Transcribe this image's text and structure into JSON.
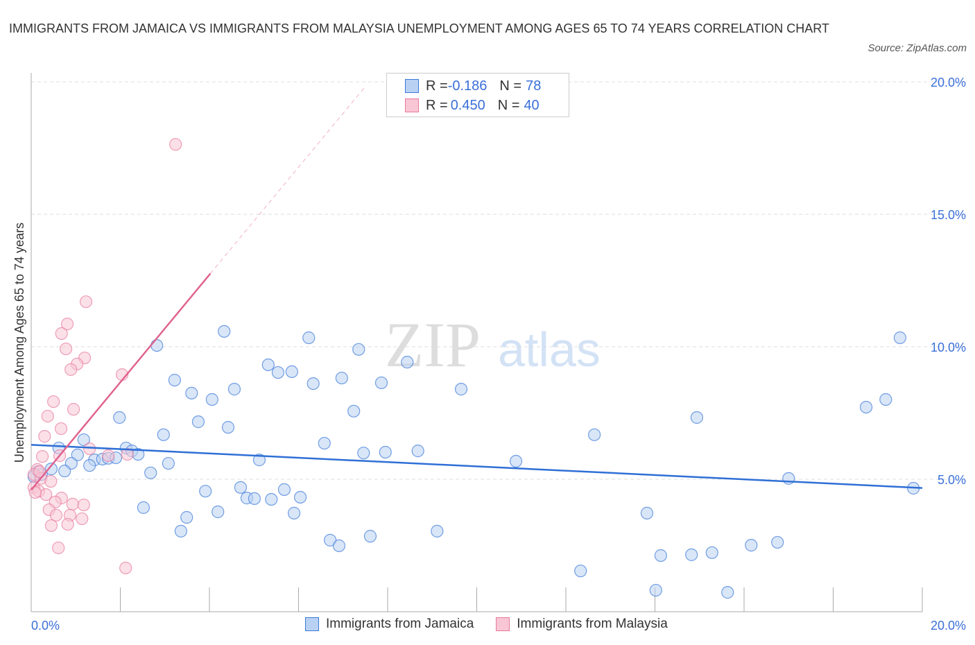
{
  "title": "IMMIGRANTS FROM JAMAICA VS IMMIGRANTS FROM MALAYSIA UNEMPLOYMENT AMONG AGES 65 TO 74 YEARS CORRELATION CHART",
  "source": "Source: ZipAtlas.com",
  "watermark": "ZIPatlas",
  "legend": [
    {
      "r_label": "R = ",
      "r": "-0.186",
      "n_label": "N = ",
      "n": "78"
    },
    {
      "r_label": "R = ",
      "r": "0.450",
      "n_label": "N = ",
      "n": "40"
    }
  ],
  "chart_data": {
    "type": "scatter",
    "title": "IMMIGRANTS FROM JAMAICA VS IMMIGRANTS FROM MALAYSIA UNEMPLOYMENT AMONG AGES 65 TO 74 YEARS CORRELATION CHART",
    "ylabel": "Unemployment Among Ages 65 to 74 years",
    "xlabel": "",
    "xlim": [
      0,
      20
    ],
    "ylim": [
      0,
      20
    ],
    "x_tick_labels": [
      "0.0%",
      "20.0%"
    ],
    "y_tick_labels": [
      "5.0%",
      "10.0%",
      "15.0%",
      "20.0%"
    ],
    "y_ticks": [
      5,
      10,
      15,
      20
    ],
    "grid": true,
    "legend_placement": "bottom",
    "series": [
      {
        "name": "Immigrants from Jamaica",
        "color": "#3a78d8",
        "fill": "#b9d2f3",
        "trend": {
          "intercept": 6.3,
          "slope": -0.0815,
          "x_range": [
            0,
            20
          ]
        },
        "points": [
          [
            2.82,
            10.05
          ],
          [
            4.33,
            10.58
          ],
          [
            6.23,
            10.34
          ],
          [
            7.35,
            9.9
          ],
          [
            19.5,
            10.34
          ],
          [
            5.32,
            9.32
          ],
          [
            5.54,
            9.03
          ],
          [
            5.85,
            9.06
          ],
          [
            8.44,
            9.42
          ],
          [
            3.22,
            8.74
          ],
          [
            6.33,
            8.61
          ],
          [
            6.97,
            8.82
          ],
          [
            7.86,
            8.64
          ],
          [
            9.65,
            8.4
          ],
          [
            3.6,
            8.25
          ],
          [
            4.06,
            8.01
          ],
          [
            4.56,
            8.4
          ],
          [
            1.98,
            7.33
          ],
          [
            3.75,
            7.17
          ],
          [
            4.42,
            6.96
          ],
          [
            7.24,
            7.57
          ],
          [
            18.74,
            7.72
          ],
          [
            19.18,
            8.01
          ],
          [
            14.94,
            7.33
          ],
          [
            2.97,
            6.68
          ],
          [
            12.64,
            6.68
          ],
          [
            1.18,
            6.49
          ],
          [
            0.62,
            6.18
          ],
          [
            2.13,
            6.18
          ],
          [
            2.26,
            6.07
          ],
          [
            2.4,
            5.94
          ],
          [
            6.58,
            6.36
          ],
          [
            7.46,
            5.99
          ],
          [
            7.95,
            6.02
          ],
          [
            8.68,
            6.07
          ],
          [
            1.04,
            5.92
          ],
          [
            1.42,
            5.73
          ],
          [
            1.6,
            5.76
          ],
          [
            1.73,
            5.79
          ],
          [
            1.9,
            5.81
          ],
          [
            3.08,
            5.6
          ],
          [
            5.12,
            5.73
          ],
          [
            10.88,
            5.68
          ],
          [
            0.9,
            5.6
          ],
          [
            1.31,
            5.52
          ],
          [
            0.45,
            5.39
          ],
          [
            0.75,
            5.31
          ],
          [
            0.16,
            5.29
          ],
          [
            0.23,
            5.18
          ],
          [
            0.06,
            5.1
          ],
          [
            2.68,
            5.24
          ],
          [
            17.0,
            5.03
          ],
          [
            19.8,
            4.66
          ],
          [
            3.91,
            4.55
          ],
          [
            4.7,
            4.69
          ],
          [
            5.68,
            4.61
          ],
          [
            4.84,
            4.29
          ],
          [
            5.01,
            4.27
          ],
          [
            5.39,
            4.24
          ],
          [
            6.04,
            4.32
          ],
          [
            2.52,
            3.93
          ],
          [
            4.19,
            3.77
          ],
          [
            5.9,
            3.72
          ],
          [
            13.82,
            3.72
          ],
          [
            3.49,
            3.56
          ],
          [
            3.36,
            3.04
          ],
          [
            9.11,
            3.04
          ],
          [
            6.71,
            2.7
          ],
          [
            6.91,
            2.49
          ],
          [
            7.61,
            2.85
          ],
          [
            16.16,
            2.51
          ],
          [
            16.75,
            2.62
          ],
          [
            14.13,
            2.12
          ],
          [
            14.82,
            2.15
          ],
          [
            15.28,
            2.23
          ],
          [
            12.33,
            1.54
          ],
          [
            14.02,
            0.81
          ],
          [
            15.63,
            0.73
          ]
        ]
      },
      {
        "name": "Immigrants from Malaysia",
        "color": "#e8799d",
        "fill": "#f8c6d5",
        "trend": {
          "intercept": 4.6,
          "slope": 2.03,
          "x_range": [
            0,
            4.02
          ],
          "dashed_to": 7.5
        },
        "points": [
          [
            3.24,
            17.64
          ],
          [
            1.23,
            11.7
          ],
          [
            0.81,
            10.86
          ],
          [
            0.68,
            10.5
          ],
          [
            0.78,
            9.92
          ],
          [
            1.2,
            9.58
          ],
          [
            1.03,
            9.35
          ],
          [
            0.89,
            9.14
          ],
          [
            2.04,
            8.95
          ],
          [
            0.5,
            7.93
          ],
          [
            0.95,
            7.64
          ],
          [
            0.37,
            7.38
          ],
          [
            0.67,
            6.91
          ],
          [
            0.3,
            6.62
          ],
          [
            1.31,
            6.15
          ],
          [
            0.25,
            5.86
          ],
          [
            0.64,
            5.89
          ],
          [
            1.73,
            5.89
          ],
          [
            2.16,
            5.94
          ],
          [
            0.14,
            5.37
          ],
          [
            0.06,
            5.18
          ],
          [
            0.22,
            5.03
          ],
          [
            0.44,
            4.92
          ],
          [
            0.06,
            4.69
          ],
          [
            0.17,
            4.55
          ],
          [
            0.33,
            4.42
          ],
          [
            0.68,
            4.29
          ],
          [
            0.54,
            4.14
          ],
          [
            0.93,
            4.06
          ],
          [
            1.18,
            4.03
          ],
          [
            0.4,
            3.85
          ],
          [
            0.56,
            3.64
          ],
          [
            0.87,
            3.64
          ],
          [
            1.14,
            3.51
          ],
          [
            0.45,
            3.25
          ],
          [
            0.82,
            3.3
          ],
          [
            0.61,
            2.41
          ],
          [
            2.12,
            1.65
          ],
          [
            0.09,
            4.5
          ],
          [
            0.19,
            5.29
          ]
        ]
      }
    ]
  }
}
